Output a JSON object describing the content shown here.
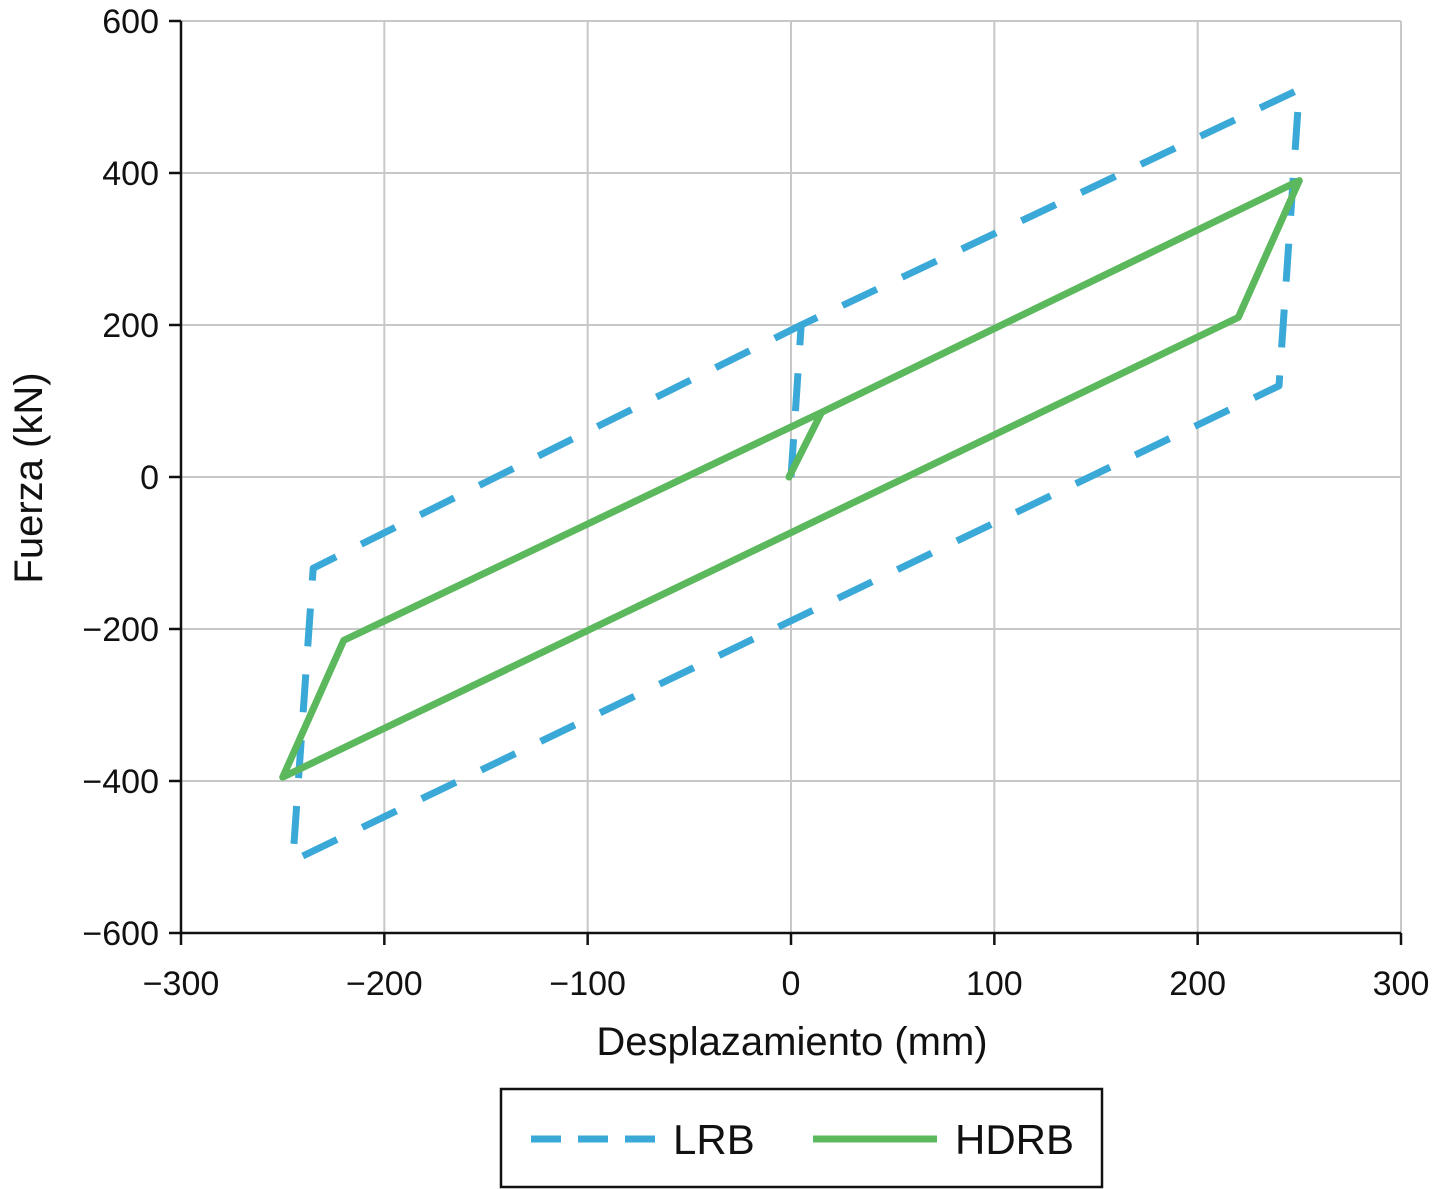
{
  "chart_data": {
    "type": "line",
    "title": "",
    "xlabel": "Desplazamiento (mm)",
    "ylabel": "Fuerza (kN)",
    "xlim": [
      -300,
      300
    ],
    "ylim": [
      -600,
      600
    ],
    "x_ticks": [
      -300,
      -200,
      -100,
      0,
      100,
      200,
      300
    ],
    "y_ticks": [
      -600,
      -400,
      -200,
      0,
      200,
      400,
      600
    ],
    "x_tick_labels": [
      "−300",
      "−200",
      "−100",
      "0",
      "100",
      "200",
      "300"
    ],
    "y_tick_labels": [
      "−600",
      "−400",
      "−200",
      "0",
      "200",
      "400",
      "600"
    ],
    "grid": true,
    "legend_position": "bottom-center",
    "series": [
      {
        "name": "LRB",
        "color": "#3aa9d8",
        "style": "dashed",
        "points": [
          [
            0,
            0
          ],
          [
            5,
            200
          ],
          [
            250,
            510
          ],
          [
            240,
            120
          ],
          [
            -245,
            -505
          ],
          [
            -235,
            -120
          ],
          [
            5,
            200
          ]
        ]
      },
      {
        "name": "HDRB",
        "color": "#5cb85c",
        "style": "solid",
        "points": [
          [
            -1,
            0
          ],
          [
            15,
            85
          ],
          [
            250,
            390
          ],
          [
            220,
            210
          ],
          [
            -250,
            -395
          ],
          [
            -220,
            -215
          ],
          [
            15,
            85
          ]
        ]
      }
    ]
  }
}
